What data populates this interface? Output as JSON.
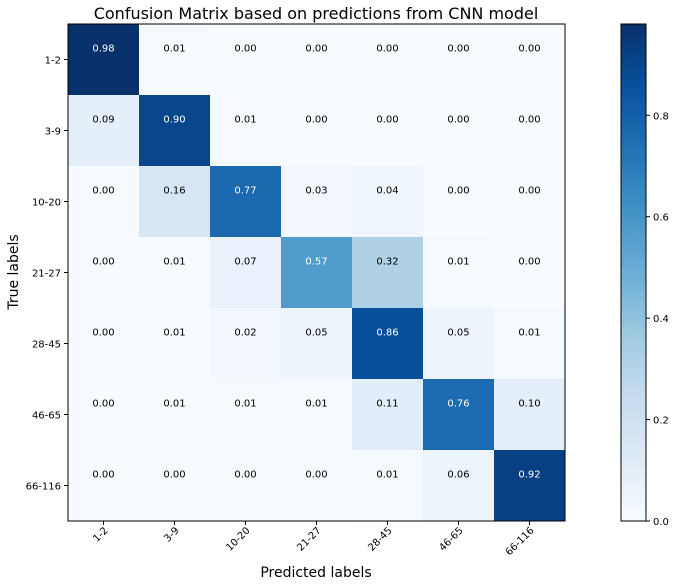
{
  "chart_data": {
    "type": "heatmap",
    "title": "Confusion Matrix based on predictions from CNN model",
    "xlabel": "Predicted labels",
    "ylabel": "True labels",
    "x_categories": [
      "1-2",
      "3-9",
      "10-20",
      "21-27",
      "28-45",
      "46-65",
      "66-116"
    ],
    "y_categories": [
      "1-2",
      "3-9",
      "10-20",
      "21-27",
      "28-45",
      "46-65",
      "66-116"
    ],
    "values": [
      [
        0.98,
        0.01,
        0.0,
        0.0,
        0.0,
        0.0,
        0.0
      ],
      [
        0.09,
        0.9,
        0.01,
        0.0,
        0.0,
        0.0,
        0.0
      ],
      [
        0.0,
        0.16,
        0.77,
        0.03,
        0.04,
        0.0,
        0.0
      ],
      [
        0.0,
        0.01,
        0.07,
        0.57,
        0.32,
        0.01,
        0.0
      ],
      [
        0.0,
        0.01,
        0.02,
        0.05,
        0.86,
        0.05,
        0.01
      ],
      [
        0.0,
        0.01,
        0.01,
        0.01,
        0.11,
        0.76,
        0.1
      ],
      [
        0.0,
        0.0,
        0.0,
        0.0,
        0.01,
        0.06,
        0.92
      ]
    ],
    "colormap": "Blues",
    "vmin": 0.0,
    "vmax": 0.98,
    "colorbar_ticks": [
      "0.0",
      "0.2",
      "0.4",
      "0.6",
      "0.8"
    ],
    "colorbar_tick_values": [
      0.0,
      0.2,
      0.4,
      0.6,
      0.8
    ],
    "grid": false,
    "x_tick_rotation": 45
  }
}
